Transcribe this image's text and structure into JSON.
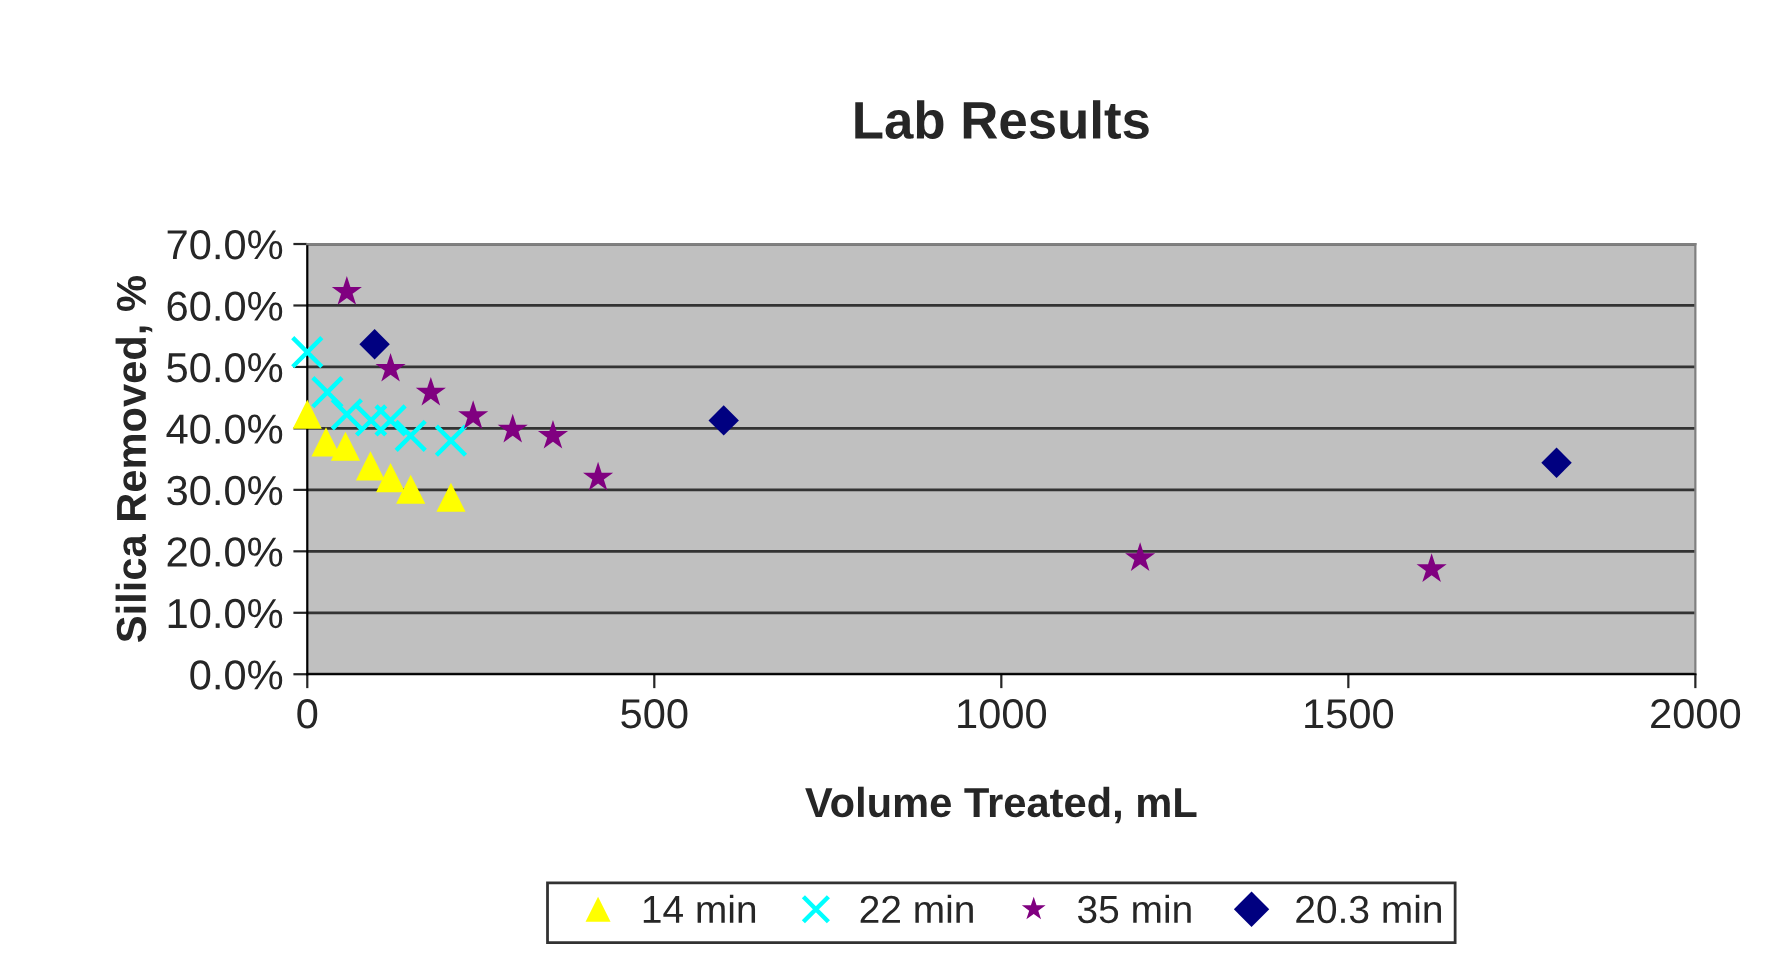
{
  "chart_data": {
    "type": "scatter",
    "title": "Lab Results",
    "xlabel": "Volume Treated, mL",
    "ylabel": "Silica Removed, %",
    "xlim": [
      0,
      2000
    ],
    "xticks": [
      0,
      500,
      1000,
      1500,
      2000
    ],
    "ylim": [
      0,
      70
    ],
    "yticks": [
      {
        "value": 0,
        "label": "0.0%"
      },
      {
        "value": 10,
        "label": "10.0%"
      },
      {
        "value": 20,
        "label": "20.0%"
      },
      {
        "value": 30,
        "label": "30.0%"
      },
      {
        "value": 40,
        "label": "40.0%"
      },
      {
        "value": 50,
        "label": "50.0%"
      },
      {
        "value": 60,
        "label": "60.0%"
      },
      {
        "value": 70,
        "label": "70.0%"
      }
    ],
    "grid": "y",
    "legend": "bottom",
    "series": [
      {
        "name": "14 min",
        "color": "#ffff00",
        "marker": "triangle",
        "x": [
          0,
          27,
          55,
          91,
          120,
          149,
          207
        ],
        "values": [
          42.3,
          37.8,
          37.1,
          33.9,
          32.0,
          30.1,
          28.8
        ]
      },
      {
        "name": "22 min",
        "color": "#00ffff",
        "marker": "cross",
        "x": [
          0,
          29,
          57,
          92,
          120,
          149,
          207
        ],
        "values": [
          52.4,
          45.9,
          42.3,
          41.3,
          41.3,
          38.8,
          38.0
        ]
      },
      {
        "name": "35 min",
        "color": "#800080",
        "marker": "star",
        "x": [
          57,
          120,
          178,
          239,
          296,
          354,
          419,
          1200,
          1620
        ],
        "values": [
          62.2,
          49.7,
          45.8,
          42.0,
          39.8,
          38.8,
          32.0,
          18.9,
          17.1
        ]
      },
      {
        "name": "20.3 min",
        "color": "#000080",
        "marker": "diamond",
        "x": [
          97,
          600,
          1800
        ],
        "values": [
          53.7,
          41.3,
          34.4
        ]
      }
    ]
  }
}
